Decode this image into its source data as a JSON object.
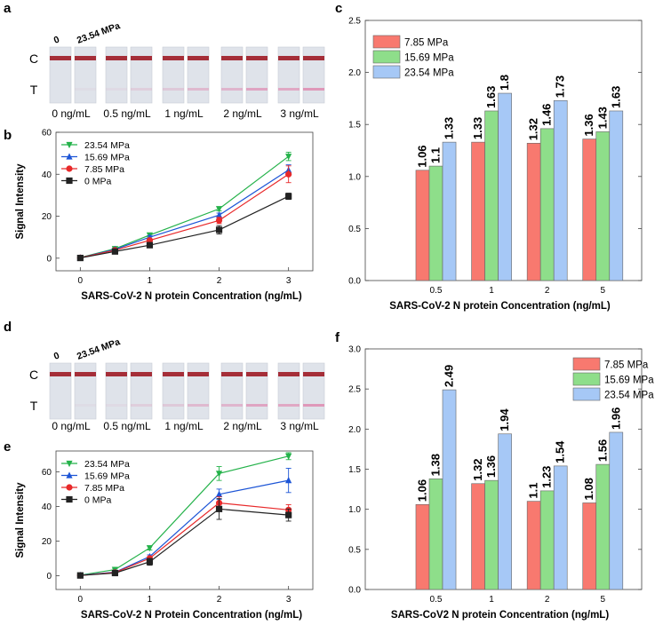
{
  "panels": {
    "a": {
      "letter": "a",
      "header_left": "0",
      "header_right": "23.54 MPa",
      "control_label": "C",
      "test_label": "T",
      "concentrations": [
        "0 ng/mL",
        "0.5 ng/mL",
        "1 ng/mL",
        "2 ng/mL",
        "3 ng/mL"
      ]
    },
    "d": {
      "letter": "d",
      "header_left": "0",
      "header_right": "23.54 MPa",
      "control_label": "C",
      "test_label": "T",
      "concentrations": [
        "0 ng/mL",
        "0.5 ng/mL",
        "1 ng/mL",
        "2 ng/mL",
        "3 ng/mL"
      ]
    },
    "b": {
      "letter": "b"
    },
    "e": {
      "letter": "e"
    },
    "c": {
      "letter": "c"
    },
    "f": {
      "letter": "f"
    }
  },
  "colors": {
    "red": "#e8292a",
    "green": "#24b24a",
    "blue": "#1d55d6",
    "black": "#222222",
    "bar_red": "#f8796f",
    "bar_green": "#8ede8a",
    "bar_blue": "#a6c8f6",
    "strip_bg": "#dfe3ea",
    "control_line": "#9e1a25",
    "test_line": "#df8fb4"
  },
  "chart_data": [
    {
      "id": "b",
      "type": "line",
      "xlabel": "SARS-CoV-2 N protein Concentration (ng/mL)",
      "ylabel": "Signal Intensity",
      "x": [
        0,
        0.5,
        1,
        2,
        3
      ],
      "xlim": [
        -0.35,
        3.35
      ],
      "ylim": [
        -6,
        60
      ],
      "xticks": [
        0,
        1,
        2,
        3
      ],
      "yticks": [
        0,
        20,
        40,
        60
      ],
      "legend_position": "top-left",
      "series": [
        {
          "name": "23.54 MPa",
          "color": "green",
          "marker": "triangle-down",
          "values": [
            0.3,
            4.5,
            11,
            23.5,
            48.5
          ],
          "errors": [
            0.5,
            0.6,
            0.8,
            1.0,
            2.0
          ]
        },
        {
          "name": "15.69 MPa",
          "color": "blue",
          "marker": "triangle-up",
          "values": [
            0.2,
            4.2,
            10,
            20.5,
            42
          ],
          "errors": [
            0.5,
            0.6,
            0.8,
            1.0,
            2.5
          ]
        },
        {
          "name": "7.85 MPa",
          "color": "red",
          "marker": "circle",
          "values": [
            0.2,
            3.8,
            8.5,
            18,
            40
          ],
          "errors": [
            0.5,
            0.6,
            0.8,
            1.5,
            4.0
          ]
        },
        {
          "name": "0 MPa",
          "color": "black",
          "marker": "square",
          "values": [
            0.1,
            3.2,
            6.2,
            13.5,
            29.5
          ],
          "errors": [
            0.5,
            0.6,
            0.8,
            2.0,
            1.5
          ]
        }
      ]
    },
    {
      "id": "e",
      "type": "line",
      "xlabel": "SARS-CoV-2 N Protein Concentration (ng/mL)",
      "ylabel": "Signal Intensity",
      "x": [
        0,
        0.5,
        1,
        2,
        3
      ],
      "xlim": [
        -0.35,
        3.35
      ],
      "ylim": [
        -8,
        72
      ],
      "xticks": [
        0,
        1,
        2,
        3
      ],
      "yticks": [
        0,
        20,
        40,
        60
      ],
      "legend_position": "top-left",
      "series": [
        {
          "name": "23.54 MPa",
          "color": "green",
          "marker": "triangle-down",
          "values": [
            0.3,
            3.5,
            16,
            59,
            69
          ],
          "errors": [
            0.5,
            0.6,
            1.2,
            4.0,
            2.0
          ]
        },
        {
          "name": "15.69 MPa",
          "color": "blue",
          "marker": "triangle-up",
          "values": [
            0.2,
            2.0,
            11,
            47,
            55
          ],
          "errors": [
            0.5,
            0.6,
            1.0,
            3.0,
            7.0
          ]
        },
        {
          "name": "7.85 MPa",
          "color": "red",
          "marker": "circle",
          "values": [
            0.1,
            1.8,
            10,
            42,
            38
          ],
          "errors": [
            0.5,
            0.6,
            1.0,
            3.5,
            3.0
          ]
        },
        {
          "name": "0 MPa",
          "color": "black",
          "marker": "square",
          "values": [
            0.1,
            1.5,
            8,
            38.5,
            35
          ],
          "errors": [
            0.5,
            0.6,
            2.0,
            6.0,
            3.5
          ]
        }
      ]
    },
    {
      "id": "c",
      "type": "bar",
      "xlabel": "SARS-CoV-2 N protein Concentration (ng/mL)",
      "ylabel": "",
      "categories": [
        "0.5",
        "1",
        "2",
        "5"
      ],
      "ylim": [
        0,
        2.5
      ],
      "yticks": [
        "0.0",
        "0.5",
        "1.0",
        "1.5",
        "2.0",
        "2.5"
      ],
      "legend_position": "top-left",
      "series": [
        {
          "name": "7.85 MPa",
          "color": "bar_red",
          "values": [
            1.06,
            1.33,
            1.32,
            1.36
          ],
          "labels": [
            "1.06",
            "1.33",
            "1.32",
            "1.36"
          ]
        },
        {
          "name": "15.69 MPa",
          "color": "bar_green",
          "values": [
            1.1,
            1.63,
            1.46,
            1.43
          ],
          "labels": [
            "1.1",
            "1.63",
            "1.46",
            "1.43"
          ]
        },
        {
          "name": "23.54 MPa",
          "color": "bar_blue",
          "values": [
            1.33,
            1.8,
            1.73,
            1.63
          ],
          "labels": [
            "1.33",
            "1.8",
            "1.73",
            "1.63"
          ]
        }
      ]
    },
    {
      "id": "f",
      "type": "bar",
      "xlabel": "SARS-CoV2 N protein Concentration (ng/mL)",
      "ylabel": "",
      "categories": [
        "0.5",
        "1",
        "2",
        "5"
      ],
      "ylim": [
        0,
        3.0
      ],
      "yticks": [
        "0.0",
        "0.5",
        "1.0",
        "1.5",
        "2.0",
        "2.5",
        "3.0"
      ],
      "legend_position": "top-right",
      "series": [
        {
          "name": "7.85 MPa",
          "color": "bar_red",
          "values": [
            1.06,
            1.32,
            1.1,
            1.08
          ],
          "labels": [
            "1.06",
            "1.32",
            "1.1",
            "1.08"
          ]
        },
        {
          "name": "15.69 MPa",
          "color": "bar_green",
          "values": [
            1.38,
            1.36,
            1.23,
            1.56
          ],
          "labels": [
            "1.38",
            "1.36",
            "1.23",
            "1.56"
          ]
        },
        {
          "name": "23.54 MPa",
          "color": "bar_blue",
          "values": [
            2.49,
            1.94,
            1.54,
            1.96
          ],
          "labels": [
            "2.49",
            "1.94",
            "1.54",
            "1.96"
          ]
        }
      ]
    }
  ]
}
